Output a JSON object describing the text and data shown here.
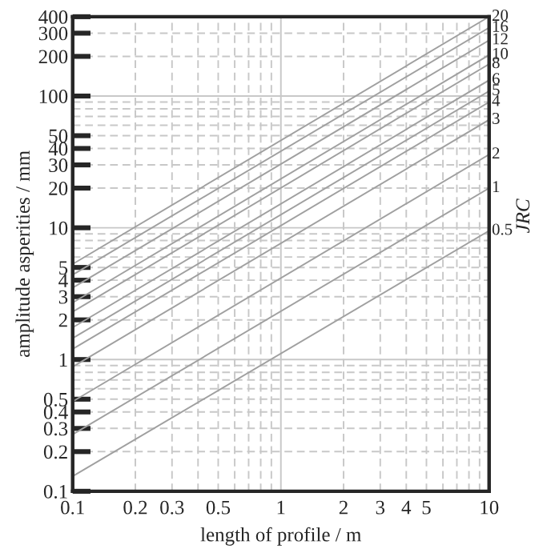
{
  "chart_data": {
    "type": "line",
    "xlabel": "length of profile / m",
    "ylabel": "amplitude asperities / mm",
    "y2label": "JRC",
    "log": "xy",
    "grid": true,
    "legend": false,
    "marker": "none",
    "line_style": "solid",
    "xlim": [
      0.1,
      10
    ],
    "xticks": [
      0.1,
      0.2,
      0.3,
      0.5,
      1,
      2,
      3,
      4,
      5,
      10
    ],
    "ylim": [
      0.1,
      400
    ],
    "yticks": [
      0.1,
      0.2,
      0.3,
      0.4,
      0.5,
      1,
      2,
      3,
      4,
      5,
      10,
      20,
      30,
      40,
      50,
      100,
      200,
      300,
      400
    ],
    "x": [
      0.1,
      10
    ],
    "series": [
      {
        "name": "20",
        "color": "#a0a0a0",
        "values": [
          5.3,
          400
        ]
      },
      {
        "name": "16",
        "color": "#a0a0a0",
        "values": [
          4.4,
          330
        ]
      },
      {
        "name": "12",
        "color": "#a0a0a0",
        "values": [
          3.5,
          265
        ]
      },
      {
        "name": "10",
        "color": "#a0a0a0",
        "values": [
          2.7,
          205
        ]
      },
      {
        "name": "8",
        "color": "#a0a0a0",
        "values": [
          2.3,
          175
        ]
      },
      {
        "name": "6",
        "color": "#a0a0a0",
        "values": [
          1.75,
          132
        ]
      },
      {
        "name": "5",
        "color": "#a0a0a0",
        "values": [
          1.45,
          109
        ]
      },
      {
        "name": "4",
        "color": "#a0a0a0",
        "values": [
          1.2,
          90
        ]
      },
      {
        "name": "3",
        "color": "#a0a0a0",
        "values": [
          0.88,
          66
        ]
      },
      {
        "name": "2",
        "color": "#a0a0a0",
        "values": [
          0.48,
          36
        ]
      },
      {
        "name": "1",
        "color": "#a0a0a0",
        "values": [
          0.27,
          20
        ]
      },
      {
        "name": "0.5",
        "color": "#a0a0a0",
        "values": [
          0.13,
          9.5
        ]
      }
    ]
  }
}
